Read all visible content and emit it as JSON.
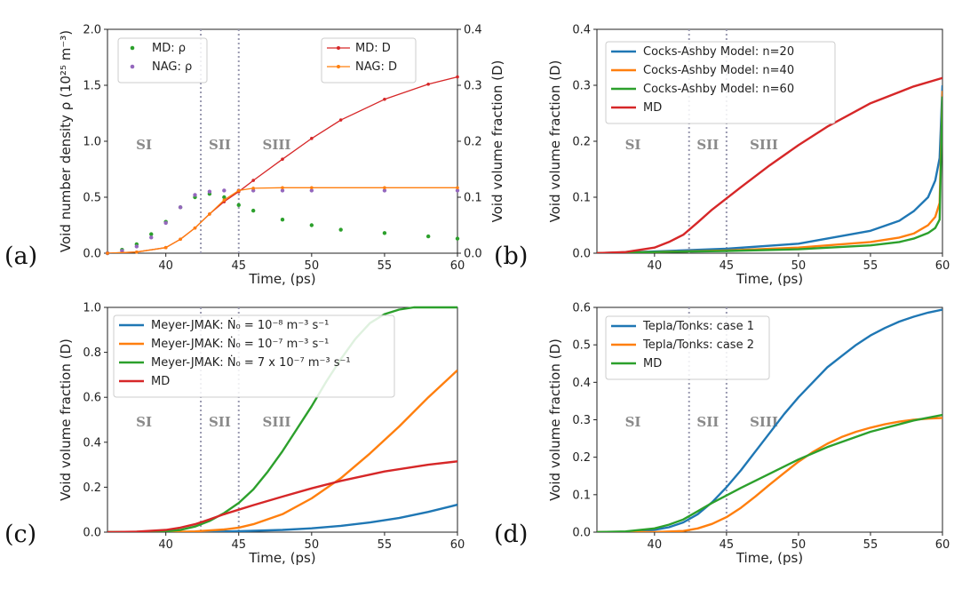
{
  "chart_data": [
    {
      "type": "line",
      "panel_label": "(a)",
      "xlabel": "Time, (ps)",
      "ylabel": "Void number density ρ (10²⁵ m⁻³)",
      "y2label": "Void volume fraction (D)",
      "xlim": [
        36,
        60
      ],
      "ylim": [
        0,
        2.0
      ],
      "y2lim": [
        0,
        0.4
      ],
      "xticks": [
        "40",
        "45",
        "50",
        "55",
        "60"
      ],
      "yticks": [
        "0.0",
        "0.5",
        "1.0",
        "1.5",
        "2.0"
      ],
      "y2ticks": [
        "0.0",
        "0.1",
        "0.2",
        "0.3",
        "0.4"
      ],
      "vlines": [
        42.4,
        45
      ],
      "stages": [
        "SI",
        "SII",
        "SIII"
      ],
      "legend_left": [
        "MD: ρ",
        "NAG: ρ"
      ],
      "legend_right": [
        "MD: D",
        "NAG: D"
      ],
      "series": [
        {
          "name": "MD: ρ",
          "axis": "left",
          "color": "#2ca02c",
          "style": "markers",
          "x": [
            36,
            37,
            38,
            39,
            40,
            41,
            42,
            43,
            44,
            45,
            46,
            48,
            50,
            52,
            55,
            58,
            60
          ],
          "y": [
            0.0,
            0.03,
            0.08,
            0.17,
            0.28,
            0.41,
            0.5,
            0.53,
            0.5,
            0.43,
            0.38,
            0.3,
            0.25,
            0.21,
            0.18,
            0.15,
            0.13
          ]
        },
        {
          "name": "NAG: ρ",
          "axis": "left",
          "color": "#9467bd",
          "style": "markers",
          "x": [
            36,
            37,
            38,
            39,
            40,
            41,
            42,
            43,
            44,
            45,
            46,
            48,
            50,
            55,
            60
          ],
          "y": [
            0.0,
            0.02,
            0.06,
            0.14,
            0.27,
            0.41,
            0.52,
            0.55,
            0.56,
            0.56,
            0.56,
            0.56,
            0.56,
            0.56,
            0.56
          ]
        },
        {
          "name": "MD: D",
          "axis": "right",
          "color": "#d62728",
          "style": "line-markers",
          "x": [
            36,
            38,
            40,
            41,
            42,
            43,
            44,
            45,
            46,
            48,
            50,
            52,
            55,
            58,
            60
          ],
          "y": [
            0.0,
            0.002,
            0.01,
            0.025,
            0.045,
            0.07,
            0.092,
            0.11,
            0.13,
            0.168,
            0.205,
            0.238,
            0.275,
            0.302,
            0.315
          ]
        },
        {
          "name": "NAG: D",
          "axis": "right",
          "color": "#ff7f0e",
          "style": "line-markers",
          "x": [
            36,
            38,
            40,
            41,
            42,
            43,
            44,
            45,
            46,
            48,
            50,
            55,
            60
          ],
          "y": [
            0.0,
            0.002,
            0.01,
            0.025,
            0.045,
            0.07,
            0.095,
            0.112,
            0.116,
            0.117,
            0.117,
            0.117,
            0.117
          ]
        }
      ]
    },
    {
      "type": "line",
      "panel_label": "(b)",
      "xlabel": "Time, (ps)",
      "ylabel": "Void volume fraction (D)",
      "xlim": [
        36,
        60
      ],
      "ylim": [
        0,
        0.4
      ],
      "xticks": [
        "40",
        "45",
        "50",
        "55",
        "60"
      ],
      "yticks": [
        "0.0",
        "0.1",
        "0.2",
        "0.3",
        "0.4"
      ],
      "vlines": [
        42.4,
        45
      ],
      "stages": [
        "SI",
        "SII",
        "SIII"
      ],
      "series": [
        {
          "name": "Cocks-Ashby Model: n=20",
          "color": "#1f77b4",
          "x": [
            36,
            40,
            45,
            50,
            55,
            57,
            58,
            59,
            59.5,
            59.8,
            60
          ],
          "y": [
            0.0,
            0.003,
            0.008,
            0.017,
            0.04,
            0.058,
            0.075,
            0.1,
            0.13,
            0.17,
            0.3
          ]
        },
        {
          "name": "Cocks-Ashby Model: n=40",
          "color": "#ff7f0e",
          "x": [
            36,
            40,
            45,
            50,
            55,
            57,
            58,
            59,
            59.5,
            59.8,
            60
          ],
          "y": [
            0.0,
            0.002,
            0.005,
            0.01,
            0.02,
            0.028,
            0.035,
            0.05,
            0.065,
            0.09,
            0.29
          ]
        },
        {
          "name": "Cocks-Ashby Model: n=60",
          "color": "#2ca02c",
          "x": [
            36,
            40,
            45,
            50,
            55,
            57,
            58,
            59,
            59.5,
            59.8,
            60
          ],
          "y": [
            0.0,
            0.002,
            0.004,
            0.007,
            0.014,
            0.02,
            0.026,
            0.036,
            0.045,
            0.06,
            0.28
          ]
        },
        {
          "name": "MD",
          "color": "#d62728",
          "x": [
            36,
            38,
            40,
            41,
            42,
            43,
            44,
            45,
            46,
            48,
            50,
            52,
            55,
            58,
            60
          ],
          "y": [
            0.0,
            0.002,
            0.01,
            0.02,
            0.033,
            0.055,
            0.078,
            0.098,
            0.118,
            0.157,
            0.193,
            0.226,
            0.268,
            0.298,
            0.313
          ]
        }
      ]
    },
    {
      "type": "line",
      "panel_label": "(c)",
      "xlabel": "Time, (ps)",
      "ylabel": "Void volume fraction (D)",
      "xlim": [
        36,
        60
      ],
      "ylim": [
        0,
        1.0
      ],
      "xticks": [
        "40",
        "45",
        "50",
        "55",
        "60"
      ],
      "yticks": [
        "0.0",
        "0.2",
        "0.4",
        "0.6",
        "0.8",
        "1.0"
      ],
      "vlines": [
        42.4,
        45
      ],
      "stages": [
        "SI",
        "SII",
        "SIII"
      ],
      "legend_display": [
        "Meyer-JMAK: Ṅ₀  = 10⁻⁸ m⁻³ s⁻¹",
        "Meyer-JMAK: Ṅ₀  = 10⁻⁷ m⁻³ s⁻¹",
        "Meyer-JMAK: Ṅ₀  = 7 x 10⁻⁷ m⁻³ s⁻¹",
        "MD"
      ],
      "series": [
        {
          "name": "Meyer-JMAK: N0 = 10^-8 m^-3 s^-1",
          "color": "#1f77b4",
          "x": [
            36,
            40,
            45,
            48,
            50,
            52,
            54,
            56,
            58,
            60
          ],
          "y": [
            0.0,
            0.0,
            0.004,
            0.01,
            0.017,
            0.028,
            0.043,
            0.063,
            0.09,
            0.122
          ]
        },
        {
          "name": "Meyer-JMAK: N0 = 10^-7 m^-3 s^-1",
          "color": "#ff7f0e",
          "x": [
            36,
            40,
            42,
            44,
            45,
            46,
            48,
            50,
            52,
            54,
            56,
            58,
            60
          ],
          "y": [
            0.0,
            0.0,
            0.003,
            0.012,
            0.02,
            0.035,
            0.08,
            0.15,
            0.24,
            0.35,
            0.47,
            0.6,
            0.72
          ]
        },
        {
          "name": "Meyer-JMAK: N0 = 7 x 10^-7 m^-3 s^-1",
          "color": "#2ca02c",
          "x": [
            36,
            40,
            41,
            42,
            43,
            44,
            45,
            46,
            47,
            48,
            49,
            50,
            51,
            52,
            53,
            54,
            55,
            56,
            57,
            58,
            60
          ],
          "y": [
            0.0,
            0.003,
            0.01,
            0.025,
            0.05,
            0.085,
            0.13,
            0.19,
            0.27,
            0.36,
            0.46,
            0.56,
            0.67,
            0.77,
            0.86,
            0.93,
            0.97,
            0.99,
            1.0,
            1.0,
            1.0
          ]
        },
        {
          "name": "MD",
          "color": "#d62728",
          "x": [
            36,
            38,
            40,
            41,
            42,
            43,
            44,
            45,
            46,
            48,
            50,
            52,
            55,
            58,
            60
          ],
          "y": [
            0.0,
            0.002,
            0.01,
            0.02,
            0.035,
            0.057,
            0.08,
            0.1,
            0.12,
            0.158,
            0.195,
            0.228,
            0.27,
            0.3,
            0.315
          ]
        }
      ]
    },
    {
      "type": "line",
      "panel_label": "(d)",
      "xlabel": "Time, (ps)",
      "ylabel": "Void volume fraction (D)",
      "xlim": [
        36,
        60
      ],
      "ylim": [
        0,
        0.6
      ],
      "xticks": [
        "40",
        "45",
        "50",
        "55",
        "60"
      ],
      "yticks": [
        "0.0",
        "0.1",
        "0.2",
        "0.3",
        "0.4",
        "0.5",
        "0.6"
      ],
      "vlines": [
        42.4,
        45
      ],
      "stages": [
        "SI",
        "SII",
        "SIII"
      ],
      "series": [
        {
          "name": "Tepla/Tonks: case 1",
          "color": "#1f77b4",
          "x": [
            36,
            38,
            40,
            41,
            42,
            43,
            44,
            45,
            46,
            47,
            48,
            49,
            50,
            51,
            52,
            53,
            54,
            55,
            56,
            57,
            58,
            59,
            60
          ],
          "y": [
            0.0,
            0.001,
            0.006,
            0.013,
            0.026,
            0.048,
            0.08,
            0.12,
            0.165,
            0.215,
            0.265,
            0.315,
            0.36,
            0.4,
            0.44,
            0.47,
            0.5,
            0.525,
            0.545,
            0.562,
            0.575,
            0.586,
            0.594
          ]
        },
        {
          "name": "Tepla/Tonks: case 2",
          "color": "#ff7f0e",
          "x": [
            36,
            40,
            42,
            43,
            44,
            45,
            46,
            47,
            48,
            49,
            50,
            51,
            52,
            53,
            54,
            55,
            56,
            57,
            58,
            59,
            60
          ],
          "y": [
            0.0,
            0.0,
            0.003,
            0.01,
            0.022,
            0.04,
            0.065,
            0.095,
            0.127,
            0.158,
            0.188,
            0.214,
            0.236,
            0.254,
            0.268,
            0.279,
            0.288,
            0.295,
            0.3,
            0.303,
            0.305
          ]
        },
        {
          "name": "MD",
          "color": "#2ca02c",
          "x": [
            36,
            38,
            40,
            41,
            42,
            43,
            44,
            45,
            46,
            48,
            50,
            52,
            55,
            58,
            60
          ],
          "y": [
            0.0,
            0.002,
            0.01,
            0.02,
            0.034,
            0.056,
            0.078,
            0.098,
            0.118,
            0.156,
            0.194,
            0.227,
            0.268,
            0.298,
            0.313
          ]
        }
      ]
    }
  ]
}
